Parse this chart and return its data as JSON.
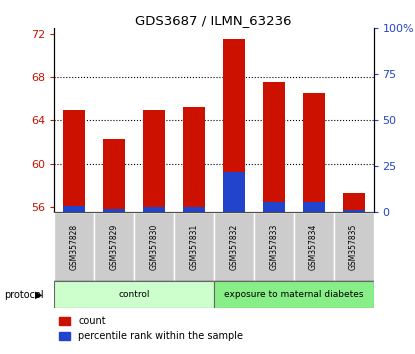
{
  "title": "GDS3687 / ILMN_63236",
  "samples": [
    "GSM357828",
    "GSM357829",
    "GSM357830",
    "GSM357831",
    "GSM357832",
    "GSM357833",
    "GSM357834",
    "GSM357835"
  ],
  "count_values": [
    65.0,
    62.3,
    65.0,
    65.2,
    71.5,
    67.5,
    66.5,
    57.3
  ],
  "percentile_values": [
    3.5,
    2.0,
    3.0,
    3.0,
    22.0,
    5.5,
    5.5,
    1.5
  ],
  "ylim_left": [
    55.5,
    72.5
  ],
  "ylim_right": [
    0,
    100
  ],
  "yticks_left": [
    56,
    60,
    64,
    68,
    72
  ],
  "yticks_right": [
    0,
    25,
    50,
    75,
    100
  ],
  "yticklabels_right": [
    "0",
    "25",
    "50",
    "75",
    "100%"
  ],
  "bar_bottom": 55.5,
  "count_color": "#cc1100",
  "percentile_color": "#2244cc",
  "background_color": "#ffffff",
  "groups": [
    {
      "label": "control",
      "start": 0,
      "end": 4,
      "color": "#ccffcc"
    },
    {
      "label": "exposure to maternal diabetes",
      "start": 4,
      "end": 8,
      "color": "#88ee88"
    }
  ],
  "legend_items": [
    {
      "label": "count",
      "color": "#cc1100"
    },
    {
      "label": "percentile rank within the sample",
      "color": "#2244cc"
    }
  ],
  "protocol_label": "protocol",
  "bar_width": 0.55,
  "x_positions": [
    0,
    1,
    2,
    3,
    4,
    5,
    6,
    7
  ]
}
